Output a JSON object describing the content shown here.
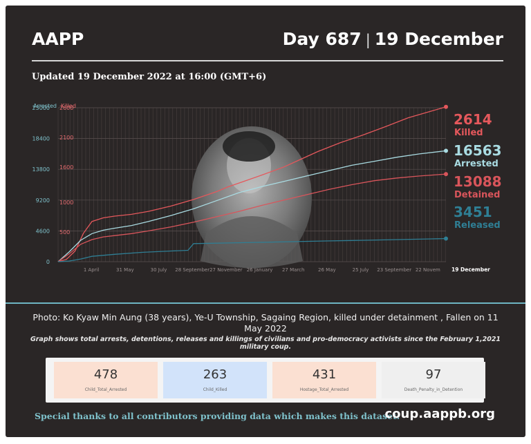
{
  "header": {
    "brand": "AAPP",
    "day": "Day 687",
    "date": "19 December",
    "updated": "Updated 19 December 2022 at 16:00 (GMT+6)"
  },
  "colors": {
    "killed": "#e5585c",
    "arrested": "#a9dbe2",
    "detained": "#d9555b",
    "released": "#2f7f95",
    "arrested_axis": "#7fc2cc",
    "killed_axis": "#e46a6e"
  },
  "chart_data": {
    "type": "line",
    "y_axes": {
      "left_title": "Arrested",
      "left_ticks": [
        "23000",
        "18400",
        "13800",
        "9200",
        "4600",
        "0"
      ],
      "left_ylim": [
        0,
        23000
      ],
      "right_title": "Killed",
      "right_ticks": [
        "2600",
        "2100",
        "1600",
        "1000",
        "500"
      ],
      "right_ylim": [
        0,
        2600
      ]
    },
    "x_tick_labels": [
      "1 April",
      "31 May",
      "30 July",
      "28 September",
      "27 November",
      "26 January",
      "27 March",
      "26 May",
      "25 July",
      "23 September",
      "22 Novem",
      "19 December"
    ],
    "grid": true,
    "series": [
      {
        "name": "Killed",
        "axis": "right",
        "end_value": "2614",
        "end_label": "Killed",
        "x": [
          0,
          15,
          30,
          45,
          54,
          60,
          80,
          100,
          130,
          160,
          200,
          240,
          280,
          300,
          330,
          360,
          400,
          430,
          460,
          500,
          540,
          580,
          620,
          660,
          687
        ],
        "values": [
          0,
          40,
          180,
          480,
          600,
          680,
          740,
          770,
          800,
          850,
          940,
          1050,
          1180,
          1260,
          1360,
          1460,
          1600,
          1730,
          1860,
          2010,
          2140,
          2280,
          2430,
          2540,
          2614
        ]
      },
      {
        "name": "Arrested",
        "axis": "left",
        "end_value": "16563",
        "end_label": "Arrested",
        "x": [
          0,
          20,
          40,
          60,
          80,
          100,
          130,
          160,
          200,
          240,
          280,
          320,
          360,
          400,
          440,
          480,
          520,
          560,
          600,
          640,
          687
        ],
        "values": [
          0,
          1500,
          3200,
          4200,
          4700,
          5000,
          5400,
          6000,
          6900,
          7900,
          9100,
          10300,
          11200,
          12000,
          12800,
          13600,
          14400,
          15000,
          15600,
          16100,
          16563
        ]
      },
      {
        "name": "Detained",
        "axis": "left",
        "end_value": "13088",
        "end_label": "Detained",
        "x": [
          0,
          20,
          40,
          60,
          80,
          100,
          130,
          160,
          200,
          240,
          280,
          320,
          360,
          400,
          440,
          480,
          520,
          560,
          600,
          640,
          687
        ],
        "values": [
          0,
          1200,
          2600,
          3300,
          3700,
          3900,
          4200,
          4600,
          5200,
          5900,
          6700,
          7500,
          8400,
          9200,
          10000,
          10800,
          11500,
          12100,
          12500,
          12800,
          13088
        ]
      },
      {
        "name": "Released",
        "axis": "left",
        "end_value": "3451",
        "end_label": "Released",
        "x": [
          0,
          20,
          40,
          60,
          100,
          150,
          200,
          230,
          240,
          300,
          360,
          420,
          480,
          540,
          600,
          660,
          687
        ],
        "values": [
          0,
          100,
          400,
          800,
          1100,
          1400,
          1600,
          1700,
          2700,
          2800,
          2900,
          3000,
          3100,
          3200,
          3300,
          3400,
          3451
        ]
      }
    ]
  },
  "caption": "Photo: Ko Kyaw Min Aung (38 years), Ye-U Township, Sagaing Region, killed under detainment , Fallen on 11 May 2022",
  "note": "Graph shows total arrests, detentions, releases and killings of civilians and pro-democracy activists since the February 1,2021 military coup.",
  "stats": [
    {
      "value": "478",
      "label": "Child_Total_Arrested",
      "bg": "#fbe0d2"
    },
    {
      "value": "263",
      "label": "Child_Killed",
      "bg": "#d2e3fa"
    },
    {
      "value": "431",
      "label": "Hostage_Total_Arrested",
      "bg": "#fbe0d2"
    },
    {
      "value": "97",
      "label": "Death_Penalty_in_Detention",
      "bg": "#efefef"
    }
  ],
  "footer": {
    "thanks": "Special thanks to all contributors providing data which makes this dataset.",
    "url": "coup.aappb.org"
  }
}
